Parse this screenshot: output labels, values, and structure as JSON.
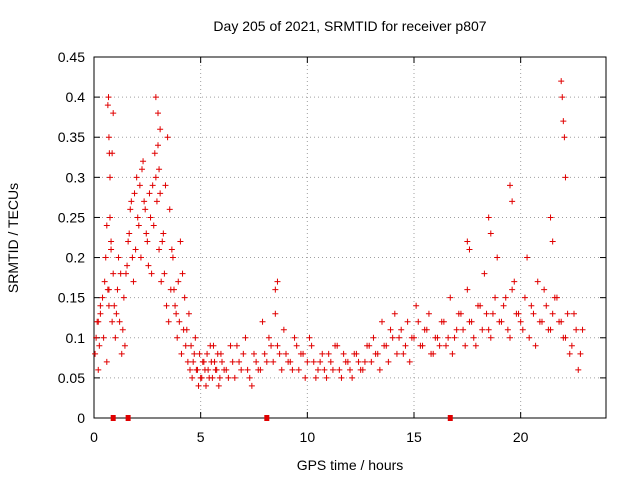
{
  "chart_data": {
    "type": "scatter",
    "title": "Day 205 of 2021, SRMTID for receiver p807",
    "xlabel": "GPS time / hours",
    "ylabel": "SRMTID / TECUs",
    "xlim": [
      0,
      24
    ],
    "ylim": [
      0,
      0.45
    ],
    "xticks": [
      0,
      5,
      10,
      15,
      20
    ],
    "yticks": [
      0,
      0.05,
      0.1,
      0.15,
      0.2,
      0.25,
      0.3,
      0.35,
      0.4,
      0.45
    ],
    "ytick_labels": [
      "0",
      "0.05",
      "0.1",
      "0.15",
      "0.2",
      "0.25",
      "0.3",
      "0.35",
      "0.4",
      "0.45"
    ],
    "grid": true,
    "marker": "+",
    "color": "#e00000",
    "series": [
      {
        "name": "SRMTID",
        "x": [
          0.05,
          0.1,
          0.15,
          0.2,
          0.25,
          0.3,
          0.4,
          0.5,
          0.55,
          0.6,
          0.65,
          0.7,
          0.75,
          0.8,
          0.85,
          0.9,
          0.95,
          1.0,
          1.05,
          1.1,
          1.15,
          1.2,
          1.3,
          1.4,
          1.5,
          1.6,
          1.7,
          1.8,
          1.9,
          2.0,
          2.1,
          2.2,
          2.3,
          2.4,
          2.5,
          2.6,
          2.7,
          2.8,
          2.9,
          3.0,
          3.1,
          3.2,
          3.3,
          3.4,
          3.5,
          3.6,
          3.7,
          3.8,
          3.9,
          4.0,
          4.1,
          4.2,
          4.3,
          4.4,
          4.5,
          4.6,
          4.7,
          4.8,
          4.9,
          5.0,
          5.1,
          5.2,
          5.3,
          5.4,
          5.5,
          5.6,
          5.7,
          5.8,
          5.9,
          6.0,
          6.2,
          6.4,
          6.6,
          6.8,
          7.0,
          7.2,
          7.4,
          7.6,
          7.8,
          8.0,
          8.2,
          8.4,
          8.6,
          8.8,
          9.0,
          9.2,
          9.4,
          9.6,
          9.8,
          10.0,
          10.2,
          10.4,
          10.6,
          10.8,
          11.0,
          11.2,
          11.4,
          11.6,
          11.8,
          12.0,
          12.2,
          12.4,
          12.6,
          12.8,
          13.0,
          13.2,
          13.4,
          13.6,
          13.8,
          14.0,
          14.2,
          14.4,
          14.6,
          14.8,
          15.0,
          15.2,
          15.4,
          15.6,
          15.8,
          16.0,
          16.2,
          16.4,
          16.6,
          16.8,
          17.0,
          17.2,
          17.4,
          17.6,
          17.8,
          18.0,
          18.2,
          18.4,
          18.6,
          18.8,
          19.0,
          19.2,
          19.4,
          19.6,
          19.8,
          20.0,
          20.2,
          20.4,
          20.6,
          20.8,
          21.0,
          21.2,
          21.4,
          21.6,
          21.8,
          22.0,
          22.2,
          22.4,
          22.6,
          22.8,
          0.2,
          0.3,
          0.45,
          0.6,
          0.7,
          0.8,
          0.75,
          0.85,
          0.9,
          1.25,
          1.35,
          1.45,
          1.55,
          1.65,
          1.75,
          1.85,
          1.95,
          2.05,
          2.15,
          2.25,
          2.35,
          2.45,
          2.55,
          2.65,
          2.75,
          2.85,
          2.95,
          3.05,
          3.15,
          3.25,
          3.35,
          3.45,
          3.55,
          3.65,
          3.75,
          3.85,
          3.95,
          4.05,
          4.15,
          4.25,
          4.35,
          4.45,
          4.55,
          4.65,
          4.75,
          4.85,
          4.95,
          5.05,
          5.15,
          5.25,
          5.35,
          5.45,
          5.55,
          5.65,
          5.75,
          5.85,
          5.95,
          6.1,
          6.3,
          6.5,
          6.7,
          6.9,
          7.1,
          7.3,
          7.5,
          7.7,
          7.9,
          8.1,
          8.3,
          8.5,
          8.7,
          8.9,
          9.1,
          9.3,
          9.5,
          9.7,
          9.9,
          10.1,
          10.3,
          10.5,
          10.7,
          10.9,
          11.1,
          11.3,
          11.5,
          11.7,
          11.9,
          12.1,
          12.3,
          12.5,
          12.7,
          12.9,
          13.1,
          13.3,
          13.5,
          13.7,
          13.9,
          14.1,
          14.3,
          14.5,
          14.7,
          14.9,
          15.1,
          15.3,
          15.5,
          15.7,
          15.9,
          16.1,
          16.3,
          16.5,
          16.7,
          16.9,
          17.1,
          17.3,
          17.5,
          17.7,
          17.9,
          18.1,
          18.3,
          18.5,
          18.7,
          18.9,
          19.1,
          19.3,
          19.5,
          19.7,
          19.9,
          20.1,
          20.3,
          20.5,
          20.7,
          20.9,
          21.1,
          21.3,
          21.5,
          21.7,
          21.9,
          22.1,
          22.3,
          22.5,
          22.7,
          22.9,
          0.65,
          0.68,
          0.7,
          0.72,
          2.9,
          3.0,
          3.05,
          3.1,
          21.9,
          21.95,
          22.0,
          22.05,
          22.1,
          19.5,
          19.6,
          17.5,
          17.6,
          18.5,
          18.6,
          21.4,
          21.5,
          8.5,
          8.6
        ],
        "y": [
          0.08,
          0.1,
          0.12,
          0.06,
          0.09,
          0.13,
          0.15,
          0.17,
          0.2,
          0.24,
          0.16,
          0.14,
          0.3,
          0.22,
          0.12,
          0.18,
          0.14,
          0.1,
          0.13,
          0.16,
          0.2,
          0.12,
          0.08,
          0.15,
          0.18,
          0.22,
          0.26,
          0.2,
          0.28,
          0.3,
          0.24,
          0.2,
          0.32,
          0.26,
          0.22,
          0.28,
          0.18,
          0.24,
          0.3,
          0.34,
          0.28,
          0.22,
          0.18,
          0.14,
          0.12,
          0.16,
          0.2,
          0.14,
          0.1,
          0.12,
          0.08,
          0.11,
          0.09,
          0.07,
          0.06,
          0.05,
          0.08,
          0.06,
          0.04,
          0.05,
          0.07,
          0.06,
          0.08,
          0.05,
          0.07,
          0.09,
          0.06,
          0.08,
          0.05,
          0.07,
          0.06,
          0.09,
          0.05,
          0.07,
          0.08,
          0.06,
          0.04,
          0.07,
          0.06,
          0.08,
          0.1,
          0.07,
          0.09,
          0.06,
          0.08,
          0.07,
          0.1,
          0.06,
          0.08,
          0.07,
          0.09,
          0.05,
          0.07,
          0.06,
          0.08,
          0.06,
          0.09,
          0.05,
          0.07,
          0.06,
          0.08,
          0.07,
          0.06,
          0.09,
          0.07,
          0.08,
          0.06,
          0.09,
          0.07,
          0.1,
          0.08,
          0.11,
          0.09,
          0.07,
          0.1,
          0.12,
          0.09,
          0.11,
          0.08,
          0.1,
          0.09,
          0.12,
          0.1,
          0.08,
          0.11,
          0.13,
          0.09,
          0.12,
          0.1,
          0.14,
          0.11,
          0.13,
          0.1,
          0.15,
          0.12,
          0.14,
          0.11,
          0.16,
          0.13,
          0.12,
          0.15,
          0.1,
          0.13,
          0.17,
          0.12,
          0.14,
          0.11,
          0.15,
          0.12,
          0.1,
          0.13,
          0.09,
          0.11,
          0.08,
          0.12,
          0.14,
          0.1,
          0.07,
          0.16,
          0.21,
          0.25,
          0.33,
          0.38,
          0.18,
          0.11,
          0.09,
          0.19,
          0.23,
          0.27,
          0.17,
          0.21,
          0.25,
          0.29,
          0.31,
          0.27,
          0.23,
          0.19,
          0.25,
          0.29,
          0.33,
          0.27,
          0.21,
          0.17,
          0.23,
          0.29,
          0.35,
          0.26,
          0.21,
          0.16,
          0.13,
          0.17,
          0.22,
          0.18,
          0.15,
          0.11,
          0.13,
          0.09,
          0.07,
          0.1,
          0.06,
          0.08,
          0.05,
          0.07,
          0.04,
          0.06,
          0.09,
          0.05,
          0.07,
          0.06,
          0.04,
          0.08,
          0.06,
          0.05,
          0.07,
          0.09,
          0.06,
          0.1,
          0.05,
          0.08,
          0.06,
          0.12,
          0.07,
          0.09,
          0.13,
          0.08,
          0.11,
          0.07,
          0.06,
          0.09,
          0.08,
          0.05,
          0.1,
          0.07,
          0.06,
          0.08,
          0.05,
          0.07,
          0.09,
          0.06,
          0.08,
          0.07,
          0.05,
          0.08,
          0.06,
          0.07,
          0.09,
          0.1,
          0.08,
          0.12,
          0.09,
          0.11,
          0.13,
          0.1,
          0.08,
          0.12,
          0.1,
          0.14,
          0.09,
          0.11,
          0.13,
          0.08,
          0.1,
          0.12,
          0.09,
          0.15,
          0.1,
          0.13,
          0.11,
          0.16,
          0.12,
          0.09,
          0.14,
          0.18,
          0.11,
          0.13,
          0.2,
          0.12,
          0.15,
          0.1,
          0.17,
          0.13,
          0.11,
          0.2,
          0.14,
          0.09,
          0.12,
          0.16,
          0.11,
          0.13,
          0.15,
          0.12,
          0.1,
          0.08,
          0.13,
          0.06,
          0.11,
          0.39,
          0.4,
          0.35,
          0.33,
          0.4,
          0.38,
          0.31,
          0.36,
          0.42,
          0.4,
          0.37,
          0.35,
          0.3,
          0.29,
          0.27,
          0.22,
          0.21,
          0.25,
          0.23,
          0.25,
          0.22,
          0.16,
          0.17
        ]
      }
    ],
    "zero_marks_x": [
      0.9,
      1.6,
      8.1,
      16.7
    ]
  }
}
